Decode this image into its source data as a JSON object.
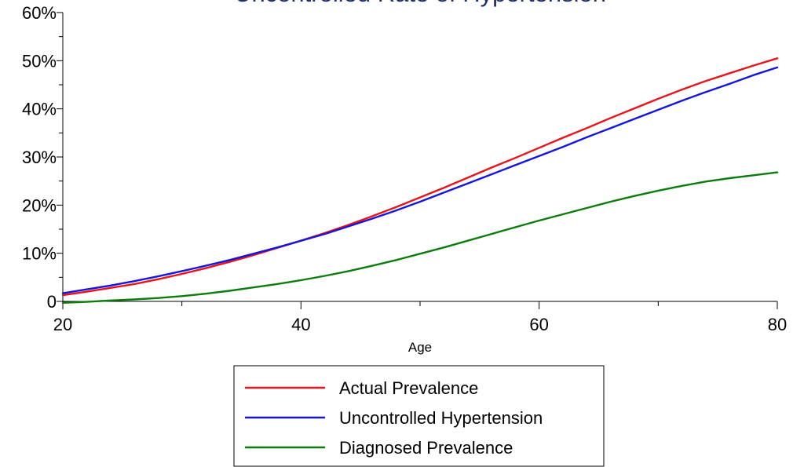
{
  "chart_data": {
    "type": "line",
    "title": "Uncontrolled Rate of Hypertension",
    "xlabel": "Age",
    "ylabel": "",
    "xlim": [
      20,
      80
    ],
    "ylim": [
      0,
      60
    ],
    "x_ticks": [
      20,
      40,
      60,
      80
    ],
    "x_tick_labels": [
      "20",
      "40",
      "60",
      "80"
    ],
    "y_ticks": [
      0,
      10,
      20,
      30,
      40,
      50,
      60
    ],
    "y_tick_labels": [
      "0",
      "10%",
      "20%",
      "30%",
      "40%",
      "50%",
      "60%"
    ],
    "grid": false,
    "legend_position": "bottom-center",
    "x": [
      20,
      22,
      24,
      26,
      28,
      30,
      32,
      34,
      36,
      38,
      40,
      42,
      44,
      46,
      48,
      50,
      52,
      54,
      56,
      58,
      60,
      62,
      64,
      66,
      68,
      70,
      72,
      74,
      76,
      78,
      80
    ],
    "series": [
      {
        "name": "Actual Prevalence",
        "color": "#e8141b",
        "values": [
          1.3,
          2.0,
          2.8,
          3.6,
          4.6,
          5.7,
          6.9,
          8.2,
          9.6,
          11.1,
          12.6,
          14.2,
          15.9,
          17.7,
          19.6,
          21.6,
          23.6,
          25.7,
          27.8,
          29.8,
          31.9,
          34.0,
          36.0,
          38.1,
          40.1,
          42.1,
          44.0,
          45.8,
          47.4,
          49.0,
          50.5
        ]
      },
      {
        "name": "Uncontrolled Hypertension",
        "color": "#1515e0",
        "values": [
          1.7,
          2.5,
          3.3,
          4.2,
          5.2,
          6.3,
          7.4,
          8.6,
          9.9,
          11.2,
          12.6,
          14.0,
          15.6,
          17.2,
          18.9,
          20.7,
          22.6,
          24.5,
          26.4,
          28.3,
          30.2,
          32.1,
          34.1,
          36.0,
          37.9,
          39.8,
          41.7,
          43.5,
          45.2,
          47.0,
          48.6
        ]
      },
      {
        "name": "Diagnosed Prevalence",
        "color": "#0c7d0c",
        "values": [
          -0.3,
          -0.1,
          0.2,
          0.4,
          0.7,
          1.1,
          1.6,
          2.2,
          2.9,
          3.6,
          4.4,
          5.3,
          6.3,
          7.4,
          8.6,
          9.9,
          11.2,
          12.6,
          14.0,
          15.4,
          16.8,
          18.1,
          19.4,
          20.7,
          21.9,
          23.0,
          24.0,
          24.9,
          25.6,
          26.2,
          26.8
        ]
      }
    ]
  }
}
